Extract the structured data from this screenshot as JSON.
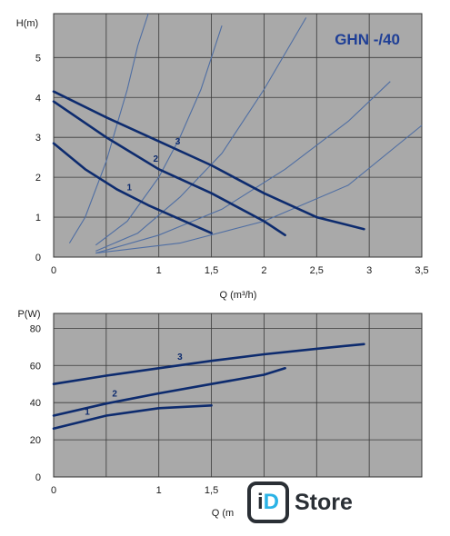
{
  "chart_data": [
    {
      "type": "line",
      "title": "GHN -/40",
      "xlabel": "Q (m³/h)",
      "ylabel": "H(m)",
      "xlim": [
        0,
        3.5
      ],
      "ylim": [
        0,
        6.1
      ],
      "x_ticks": [
        "0",
        "1",
        "1,5",
        "2",
        "2,5",
        "3",
        "3,5"
      ],
      "x_tick_values": [
        0,
        1,
        1.5,
        2,
        2.5,
        3,
        3.5
      ],
      "y_ticks": [
        "0",
        "1",
        "2",
        "3",
        "4",
        "5"
      ],
      "y_tick_values": [
        0,
        1,
        2,
        3,
        4,
        5
      ],
      "grid": true,
      "series": [
        {
          "name": "1",
          "x": [
            0,
            0.3,
            0.6,
            0.9,
            1.2,
            1.5
          ],
          "y": [
            2.85,
            2.2,
            1.7,
            1.3,
            0.95,
            0.6
          ]
        },
        {
          "name": "2",
          "x": [
            0,
            0.5,
            1.0,
            1.5,
            2.0,
            2.2
          ],
          "y": [
            3.9,
            3.0,
            2.2,
            1.6,
            0.9,
            0.55
          ]
        },
        {
          "name": "3",
          "x": [
            0,
            0.5,
            1.0,
            1.5,
            2.0,
            2.5,
            2.95
          ],
          "y": [
            4.15,
            3.5,
            2.9,
            2.3,
            1.6,
            1.0,
            0.7
          ]
        }
      ],
      "system_curves": [
        {
          "x": [
            0.15,
            0.3,
            0.5,
            0.6,
            0.7,
            0.8,
            0.9
          ],
          "y": [
            0.35,
            1.0,
            2.4,
            3.3,
            4.2,
            5.3,
            6.1
          ]
        },
        {
          "x": [
            0.4,
            0.7,
            1.0,
            1.2,
            1.4,
            1.6
          ],
          "y": [
            0.3,
            0.9,
            2.0,
            3.0,
            4.2,
            5.8
          ]
        },
        {
          "x": [
            0.4,
            0.8,
            1.2,
            1.6,
            2.0,
            2.4
          ],
          "y": [
            0.15,
            0.6,
            1.5,
            2.6,
            4.2,
            6.0
          ]
        },
        {
          "x": [
            0.4,
            1.0,
            1.6,
            2.2,
            2.8,
            3.2
          ],
          "y": [
            0.1,
            0.55,
            1.2,
            2.2,
            3.4,
            4.4
          ]
        },
        {
          "x": [
            0.4,
            1.2,
            2.0,
            2.8,
            3.5
          ],
          "y": [
            0.1,
            0.35,
            0.9,
            1.8,
            3.3
          ]
        }
      ],
      "line_color": "#0d2b6e",
      "system_curve_color": "#4f6ea3",
      "background_color": "#a9a9a9",
      "title_color": "#1f3f96"
    },
    {
      "type": "line",
      "title": "",
      "xlabel": "Q (m",
      "ylabel": "P(W)",
      "xlim": [
        0,
        3.5
      ],
      "ylim": [
        0,
        88
      ],
      "x_ticks": [
        "0",
        "1",
        "1,5"
      ],
      "x_tick_values": [
        0,
        1,
        1.5
      ],
      "y_ticks": [
        "0",
        "20",
        "40",
        "60",
        "80"
      ],
      "y_tick_values": [
        0,
        20,
        40,
        60,
        80
      ],
      "grid": true,
      "series": [
        {
          "name": "1",
          "x": [
            0,
            0.5,
            1.0,
            1.5
          ],
          "y": [
            26,
            33,
            37,
            38.5
          ]
        },
        {
          "name": "2",
          "x": [
            0,
            0.5,
            1.0,
            1.5,
            2.0,
            2.2
          ],
          "y": [
            33,
            39.5,
            45,
            50,
            55,
            58.5
          ]
        },
        {
          "name": "3",
          "x": [
            0,
            0.5,
            1.0,
            1.5,
            2.0,
            2.5,
            2.95
          ],
          "y": [
            50,
            54.5,
            58.5,
            62.5,
            66,
            69,
            71.5
          ]
        }
      ],
      "line_color": "#0d2b6e",
      "background_color": "#a9a9a9"
    }
  ],
  "logo": {
    "mark_i": "i",
    "mark_d": "D",
    "text": "Store"
  }
}
